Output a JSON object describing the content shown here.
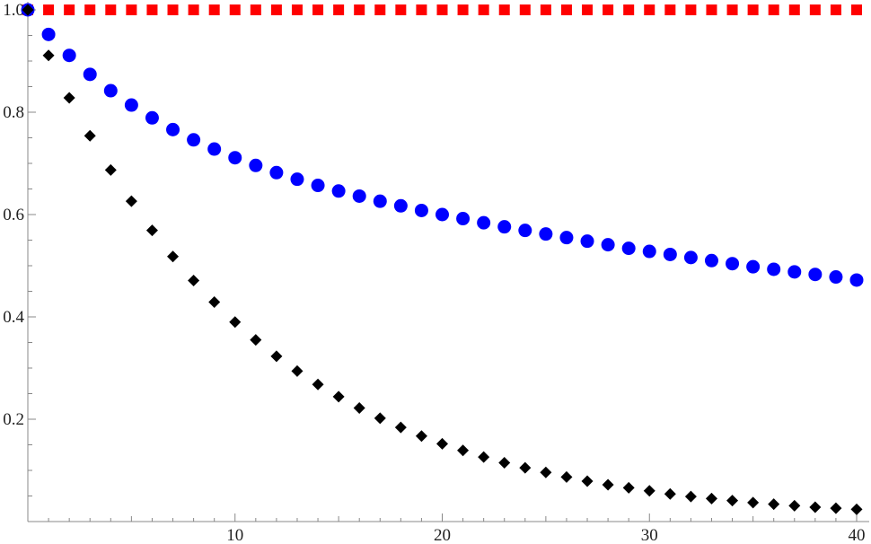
{
  "chart_data": {
    "type": "scatter",
    "title": "",
    "xlabel": "",
    "ylabel": "",
    "xlim": [
      0,
      40.7
    ],
    "ylim": [
      0,
      1.0
    ],
    "x_ticks": [
      10,
      20,
      30,
      40
    ],
    "x_tick_labels": [
      "10",
      "20",
      "30",
      "40"
    ],
    "y_ticks": [
      0.2,
      0.4,
      0.6,
      0.8,
      1.0
    ],
    "y_tick_labels": [
      "0.2",
      "0.4",
      "0.6",
      "0.8",
      "1.0"
    ],
    "grid": false,
    "x": [
      0,
      1,
      2,
      3,
      4,
      5,
      6,
      7,
      8,
      9,
      10,
      11,
      12,
      13,
      14,
      15,
      16,
      17,
      18,
      19,
      20,
      21,
      22,
      23,
      24,
      25,
      26,
      27,
      28,
      29,
      30,
      31,
      32,
      33,
      34,
      35,
      36,
      37,
      38,
      39,
      40
    ],
    "series": [
      {
        "marker": "square",
        "color": "#ff0000",
        "values": [
          1,
          1,
          1,
          1,
          1,
          1,
          1,
          1,
          1,
          1,
          1,
          1,
          1,
          1,
          1,
          1,
          1,
          1,
          1,
          1,
          1,
          1,
          1,
          1,
          1,
          1,
          1,
          1,
          1,
          1,
          1,
          1,
          1,
          1,
          1,
          1,
          1,
          1,
          1,
          1,
          1
        ]
      },
      {
        "marker": "circle",
        "color": "#0000ff",
        "values": [
          1.0,
          0.952,
          0.911,
          0.874,
          0.842,
          0.814,
          0.789,
          0.766,
          0.746,
          0.728,
          0.711,
          0.696,
          0.682,
          0.669,
          0.657,
          0.646,
          0.636,
          0.626,
          0.617,
          0.608,
          0.6,
          0.592,
          0.584,
          0.576,
          0.569,
          0.562,
          0.555,
          0.548,
          0.541,
          0.534,
          0.528,
          0.522,
          0.516,
          0.51,
          0.504,
          0.498,
          0.493,
          0.488,
          0.483,
          0.478,
          0.472
        ]
      },
      {
        "marker": "diamond",
        "color": "#000000",
        "values": [
          1.0,
          0.911,
          0.828,
          0.754,
          0.687,
          0.626,
          0.569,
          0.518,
          0.471,
          0.429,
          0.39,
          0.355,
          0.323,
          0.294,
          0.268,
          0.244,
          0.222,
          0.202,
          0.184,
          0.167,
          0.152,
          0.139,
          0.126,
          0.115,
          0.105,
          0.096,
          0.087,
          0.079,
          0.072,
          0.066,
          0.06,
          0.054,
          0.049,
          0.045,
          0.041,
          0.037,
          0.034,
          0.031,
          0.028,
          0.026,
          0.024
        ]
      }
    ]
  }
}
